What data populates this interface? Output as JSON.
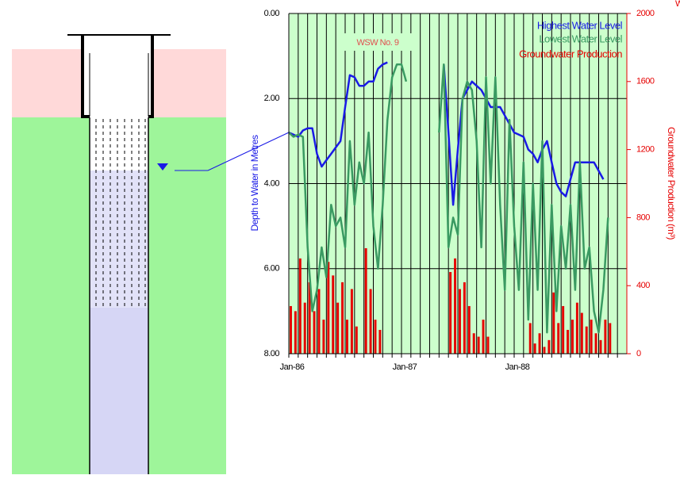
{
  "chart_data": {
    "type": "line",
    "title": "WSW No. 9",
    "corner_note": "W",
    "y_axis_label": "Depth to Water in Metres",
    "y2_axis_label": "Groundwater Production (m³)",
    "categories": [
      "Jan-86",
      null,
      null,
      null,
      null,
      null,
      null,
      null,
      null,
      null,
      null,
      null,
      null,
      null,
      null,
      null,
      null,
      null,
      null,
      null,
      null,
      null,
      null,
      null,
      "Jan-87",
      null,
      null,
      null,
      null,
      null,
      null,
      null,
      null,
      null,
      null,
      null,
      null,
      null,
      null,
      null,
      null,
      null,
      null,
      null,
      null,
      null,
      null,
      null,
      "Jan-88",
      null,
      null,
      null,
      null,
      null,
      null,
      null,
      null,
      null,
      null,
      null,
      null,
      null,
      null,
      null,
      null,
      null,
      null,
      null,
      null,
      null,
      null,
      null
    ],
    "ylim": [
      0,
      8
    ],
    "y_inverted": true,
    "yticks": [
      {
        "value": 0,
        "label": "0.00"
      },
      {
        "value": 2,
        "label": "2.00"
      },
      {
        "value": 4,
        "label": "4.00"
      },
      {
        "value": 6,
        "label": "6.00"
      },
      {
        "value": 8,
        "label": "8.00"
      }
    ],
    "y2lim": [
      0,
      2000
    ],
    "y2ticks": [
      0,
      400,
      800,
      1200,
      1600,
      2000
    ],
    "background": "#ccffcc",
    "grid": true,
    "series": [
      {
        "name": "Highest Water Level",
        "type": "line",
        "color": "#1a1ae6",
        "values": [
          2.8,
          2.85,
          2.9,
          2.75,
          2.7,
          2.7,
          3.3,
          3.6,
          3.45,
          3.3,
          3.15,
          3.0,
          2.2,
          1.45,
          1.5,
          1.7,
          1.7,
          1.6,
          1.6,
          1.3,
          1.2,
          1.15,
          null,
          null,
          null,
          null,
          null,
          null,
          null,
          null,
          null,
          null,
          null,
          1.2,
          2.8,
          4.5,
          3.2,
          2.0,
          1.8,
          1.6,
          1.7,
          1.8,
          2.0,
          2.2,
          2.2,
          2.2,
          2.4,
          2.6,
          2.8,
          2.85,
          2.9,
          3.2,
          3.3,
          3.5,
          3.2,
          3.0,
          3.5,
          4.0,
          4.2,
          4.3,
          3.9,
          3.5,
          3.5,
          3.5,
          3.5,
          3.5,
          3.7,
          3.9,
          null,
          null,
          null,
          null
        ]
      },
      {
        "name": "Lowest Water Level",
        "type": "line",
        "color": "#3a9a62",
        "values": [
          2.8,
          2.9,
          2.85,
          2.9,
          5.5,
          7.0,
          6.5,
          5.5,
          6.2,
          4.5,
          5.0,
          4.8,
          5.5,
          3.0,
          4.5,
          3.5,
          4.0,
          2.8,
          5.0,
          6.0,
          4.5,
          2.5,
          1.5,
          1.2,
          1.2,
          1.6,
          null,
          null,
          null,
          null,
          null,
          null,
          2.8,
          1.2,
          5.5,
          4.8,
          5.2,
          2.0,
          1.6,
          1.8,
          3.0,
          5.5,
          1.5,
          4.0,
          1.5,
          4.5,
          6.5,
          2.5,
          5.0,
          6.5,
          3.5,
          7.2,
          4.0,
          6.5,
          3.0,
          7.5,
          4.5,
          7.0,
          5.0,
          6.0,
          4.5,
          6.5,
          3.5,
          6.0,
          5.5,
          7.0,
          7.5,
          6.5,
          4.8,
          null,
          null,
          null
        ]
      },
      {
        "name": "Groundwater Production",
        "type": "bar",
        "axis": "y2",
        "color": "#e60000",
        "values": [
          280,
          250,
          560,
          300,
          420,
          250,
          380,
          200,
          540,
          460,
          300,
          420,
          200,
          380,
          160,
          0,
          620,
          380,
          200,
          140,
          0,
          0,
          0,
          0,
          0,
          0,
          0,
          0,
          0,
          0,
          0,
          0,
          0,
          0,
          480,
          560,
          380,
          420,
          280,
          120,
          100,
          200,
          100,
          0,
          0,
          0,
          0,
          0,
          0,
          0,
          0,
          180,
          60,
          120,
          40,
          80,
          360,
          180,
          280,
          140,
          200,
          300,
          240,
          160,
          200,
          120,
          80,
          200,
          180,
          0,
          0,
          0
        ]
      }
    ]
  }
}
